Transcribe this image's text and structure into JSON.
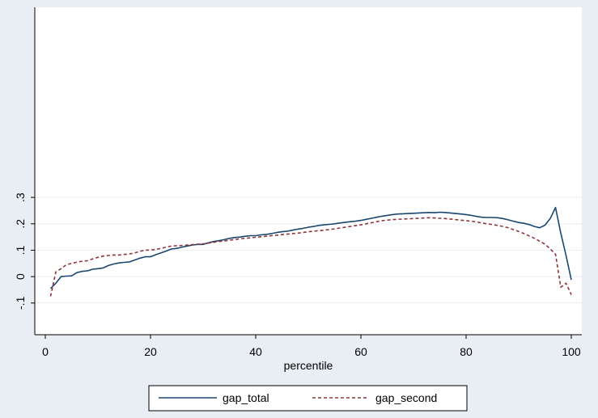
{
  "chart_data": {
    "type": "line",
    "title": "",
    "xlabel": "percentile",
    "ylabel": "",
    "xlim": [
      0,
      100
    ],
    "ylim": [
      -0.22,
      1.02
    ],
    "x_ticks": [
      0,
      20,
      40,
      60,
      80,
      100
    ],
    "x_tick_labels": [
      "0",
      "20",
      "40",
      "60",
      "80",
      "100"
    ],
    "y_ticks": [
      -0.1,
      0,
      0.1,
      0.2,
      0.3
    ],
    "y_tick_labels": [
      "-.1",
      "0",
      ".1",
      ".2",
      ".3"
    ],
    "grid": true,
    "legend_position": "bottom",
    "x": [
      1,
      2,
      3,
      4,
      5,
      6,
      7,
      8,
      9,
      10,
      11,
      12,
      13,
      14,
      15,
      16,
      17,
      18,
      19,
      20,
      21,
      22,
      23,
      24,
      25,
      26,
      27,
      28,
      29,
      30,
      31,
      32,
      33,
      34,
      35,
      36,
      37,
      38,
      39,
      40,
      41,
      42,
      43,
      44,
      45,
      46,
      47,
      48,
      49,
      50,
      51,
      52,
      53,
      54,
      55,
      56,
      57,
      58,
      59,
      60,
      61,
      62,
      63,
      64,
      65,
      66,
      67,
      68,
      69,
      70,
      71,
      72,
      73,
      74,
      75,
      76,
      77,
      78,
      79,
      80,
      81,
      82,
      83,
      84,
      85,
      86,
      87,
      88,
      89,
      90,
      91,
      92,
      93,
      94,
      95,
      96,
      97,
      98,
      99,
      100
    ],
    "series": [
      {
        "name": "gap_total",
        "color": "#1a476f",
        "dash": "solid",
        "values": [
          -0.045,
          -0.025,
          0.0,
          0.002,
          0.003,
          0.015,
          0.02,
          0.022,
          0.028,
          0.03,
          0.033,
          0.042,
          0.048,
          0.052,
          0.054,
          0.056,
          0.063,
          0.07,
          0.075,
          0.075,
          0.083,
          0.09,
          0.097,
          0.105,
          0.107,
          0.112,
          0.116,
          0.12,
          0.122,
          0.122,
          0.128,
          0.133,
          0.136,
          0.14,
          0.145,
          0.148,
          0.15,
          0.153,
          0.155,
          0.155,
          0.158,
          0.16,
          0.163,
          0.167,
          0.17,
          0.172,
          0.176,
          0.18,
          0.183,
          0.187,
          0.19,
          0.194,
          0.196,
          0.198,
          0.2,
          0.203,
          0.206,
          0.208,
          0.21,
          0.213,
          0.217,
          0.221,
          0.225,
          0.229,
          0.232,
          0.235,
          0.237,
          0.238,
          0.239,
          0.24,
          0.241,
          0.242,
          0.243,
          0.242,
          0.244,
          0.243,
          0.241,
          0.239,
          0.237,
          0.235,
          0.232,
          0.228,
          0.225,
          0.224,
          0.224,
          0.223,
          0.22,
          0.215,
          0.21,
          0.205,
          0.202,
          0.197,
          0.19,
          0.185,
          0.195,
          0.22,
          0.262,
          0.165,
          0.08,
          -0.012
        ]
      },
      {
        "name": "gap_second",
        "color": "#90353b",
        "dash": "dashed",
        "values": [
          -0.075,
          0.018,
          0.03,
          0.045,
          0.05,
          0.055,
          0.058,
          0.06,
          0.067,
          0.073,
          0.078,
          0.08,
          0.082,
          0.082,
          0.084,
          0.086,
          0.09,
          0.096,
          0.1,
          0.101,
          0.103,
          0.107,
          0.112,
          0.116,
          0.117,
          0.118,
          0.12,
          0.121,
          0.123,
          0.124,
          0.127,
          0.13,
          0.133,
          0.135,
          0.138,
          0.14,
          0.143,
          0.145,
          0.147,
          0.149,
          0.151,
          0.153,
          0.155,
          0.157,
          0.159,
          0.161,
          0.163,
          0.165,
          0.167,
          0.17,
          0.172,
          0.174,
          0.176,
          0.178,
          0.181,
          0.184,
          0.187,
          0.19,
          0.193,
          0.196,
          0.2,
          0.204,
          0.208,
          0.212,
          0.214,
          0.216,
          0.217,
          0.218,
          0.219,
          0.22,
          0.221,
          0.222,
          0.223,
          0.222,
          0.221,
          0.22,
          0.218,
          0.216,
          0.214,
          0.212,
          0.21,
          0.207,
          0.203,
          0.2,
          0.197,
          0.194,
          0.19,
          0.185,
          0.178,
          0.171,
          0.163,
          0.154,
          0.145,
          0.134,
          0.123,
          0.105,
          0.085,
          -0.04,
          -0.025,
          -0.068
        ]
      }
    ]
  }
}
